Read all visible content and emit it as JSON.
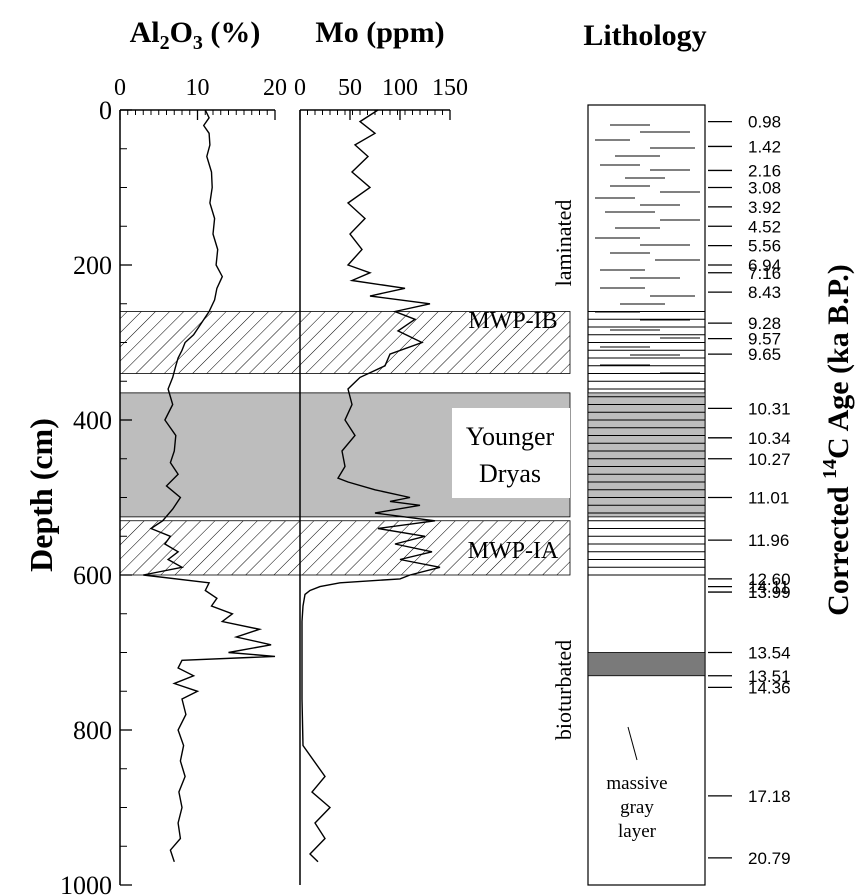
{
  "chart_data": {
    "type": "line",
    "depth_axis": {
      "label": "Depth (cm)",
      "ticks": [
        0,
        200,
        400,
        600,
        800,
        1000
      ],
      "range": [
        0,
        1000
      ],
      "inverted": true
    },
    "panels": [
      {
        "title": "Al₂O₃ (%)",
        "title_main": "Al",
        "title_sub": "2",
        "title_rest": "O",
        "title_sub2": "3",
        "title_tail": " (%)",
        "xlim": [
          0,
          20
        ],
        "xticks": [
          0,
          10,
          20
        ],
        "series": [
          {
            "depth": [
              0,
              10,
              20,
              30,
              45,
              60,
              80,
              100,
              120,
              140,
              160,
              180,
              200,
              215,
              230,
              245,
              260,
              275,
              290,
              300,
              310,
              320,
              330,
              345,
              360,
              380,
              400,
              420,
              440,
              455,
              470,
              485,
              500,
              515,
              530,
              540,
              550,
              560,
              570,
              580,
              590,
              600,
              610,
              620,
              630,
              640,
              650,
              660,
              670,
              680,
              690,
              700,
              705,
              710,
              720,
              730,
              740,
              750,
              760,
              780,
              800,
              820,
              840,
              860,
              880,
              900,
              920,
              940,
              955,
              970
            ],
            "value": [
              11,
              11.5,
              10.8,
              11.5,
              11.6,
              11.2,
              11.8,
              11.9,
              11.6,
              12.2,
              12.0,
              12.6,
              12.4,
              13.2,
              12.5,
              12.2,
              11.5,
              10.5,
              9.5,
              8.4,
              8.0,
              7.5,
              7.2,
              6.8,
              6.2,
              6.8,
              5.8,
              7.2,
              7.0,
              6.5,
              7.5,
              6.0,
              7.8,
              6.8,
              5.5,
              4.0,
              6.5,
              5.8,
              7.5,
              6.2,
              8.0,
              3.0,
              11.5,
              11.0,
              12.5,
              11.8,
              14.5,
              13.2,
              18.0,
              15.0,
              19.5,
              14.0,
              20.0,
              8.0,
              7.5,
              9.5,
              7.0,
              10.0,
              8.0,
              8.5,
              7.5,
              8.2,
              7.8,
              8.4,
              7.6,
              8.0,
              7.5,
              7.8,
              6.5,
              7.0
            ]
          }
        ]
      },
      {
        "title": "Mo (ppm)",
        "xlim": [
          0,
          150
        ],
        "xticks": [
          0,
          50,
          100,
          150
        ],
        "series": [
          {
            "depth": [
              0,
              15,
              30,
              45,
              60,
              80,
              100,
              120,
              140,
              160,
              180,
              200,
              210,
              220,
              230,
              240,
              250,
              260,
              270,
              285,
              300,
              315,
              330,
              345,
              360,
              380,
              400,
              420,
              440,
              460,
              475,
              480,
              490,
              500,
              505,
              510,
              520,
              530,
              540,
              550,
              560,
              570,
              580,
              590,
              600,
              605,
              610,
              615,
              620,
              625,
              640,
              660,
              700,
              760,
              820,
              860,
              880,
              900,
              920,
              940,
              960,
              970
            ],
            "value": [
              78,
              60,
              75,
              55,
              68,
              52,
              70,
              48,
              65,
              50,
              62,
              48,
              70,
              52,
              105,
              70,
              130,
              95,
              115,
              98,
              122,
              90,
              85,
              60,
              48,
              52,
              45,
              55,
              42,
              45,
              38,
              48,
              75,
              110,
              90,
              120,
              75,
              135,
              78,
              125,
              95,
              132,
              100,
              140,
              110,
              100,
              40,
              20,
              10,
              5,
              3,
              2,
              2,
              2,
              3,
              25,
              12,
              30,
              15,
              25,
              10,
              18
            ]
          }
        ]
      }
    ],
    "bands": [
      {
        "label": "MWP-IB",
        "depth_range": [
          260,
          340
        ],
        "style": "hatched"
      },
      {
        "label": "Younger Dryas",
        "label_line1": "Younger",
        "label_line2": "Dryas",
        "depth_range": [
          365,
          525
        ],
        "style": "gray"
      },
      {
        "label": "MWP-IA",
        "depth_range": [
          530,
          600
        ],
        "style": "hatched"
      }
    ],
    "lithology": {
      "title": "Lithology",
      "units": [
        {
          "label": "laminated",
          "depth_range": [
            0,
            365
          ]
        },
        {
          "label": "bioturbated",
          "depth_range": [
            600,
            1000
          ]
        }
      ],
      "gray_layer": {
        "depth_range": [
          700,
          730
        ],
        "label_line1": "massive",
        "label_line2": "gray",
        "label_line3": "layer"
      }
    },
    "ages": {
      "axis_label": "Corrected ¹⁴C Age (ka B.P.)",
      "label_main": "Corrected ",
      "label_sup": "14",
      "label_tail": "C Age (ka B.P.)",
      "items": [
        {
          "depth": 15,
          "label": "0.98"
        },
        {
          "depth": 47,
          "label": "1.42"
        },
        {
          "depth": 78,
          "label": "2.16"
        },
        {
          "depth": 100,
          "label": "3.08"
        },
        {
          "depth": 125,
          "label": "3.92"
        },
        {
          "depth": 150,
          "label": "4.52"
        },
        {
          "depth": 175,
          "label": "5.56"
        },
        {
          "depth": 200,
          "label": "6.94"
        },
        {
          "depth": 210,
          "label": "7.16"
        },
        {
          "depth": 235,
          "label": "8.43"
        },
        {
          "depth": 275,
          "label": "9.28"
        },
        {
          "depth": 295,
          "label": "9.57"
        },
        {
          "depth": 315,
          "label": "9.65"
        },
        {
          "depth": 385,
          "label": "10.31"
        },
        {
          "depth": 423,
          "label": "10.34"
        },
        {
          "depth": 450,
          "label": "10.27"
        },
        {
          "depth": 500,
          "label": "11.01"
        },
        {
          "depth": 555,
          "label": "11.96"
        },
        {
          "depth": 605,
          "label": "12.60"
        },
        {
          "depth": 615,
          "label": "14.11"
        },
        {
          "depth": 622,
          "label": "13.99"
        },
        {
          "depth": 700,
          "label": "13.54"
        },
        {
          "depth": 730,
          "label": "13.51"
        },
        {
          "depth": 745,
          "label": "14.36"
        },
        {
          "depth": 885,
          "label": "17.18"
        },
        {
          "depth": 965,
          "label": "20.79"
        }
      ]
    }
  }
}
